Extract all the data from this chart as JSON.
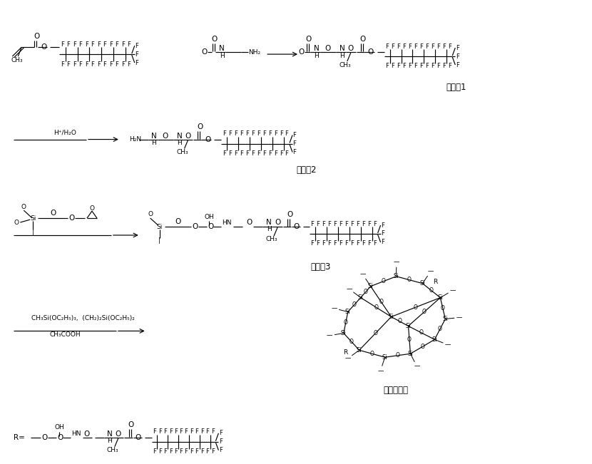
{
  "background_color": "#ffffff",
  "figsize": [
    8.3,
    6.51
  ],
  "dpi": 100,
  "labels": {
    "intermediate1": "中间体1",
    "intermediate2": "中间体2",
    "intermediate3": "中间体3",
    "fluorosilicone": "含氟有机硅"
  },
  "reagent_row1": "H⁺/H₂O",
  "reagent_row4a": "CH₃Si(OC₂H₅)₃， (CH₂)₂Si(OC₂H₅)₂",
  "reagent_row4b": "CH₃COOH",
  "R_label": "R="
}
